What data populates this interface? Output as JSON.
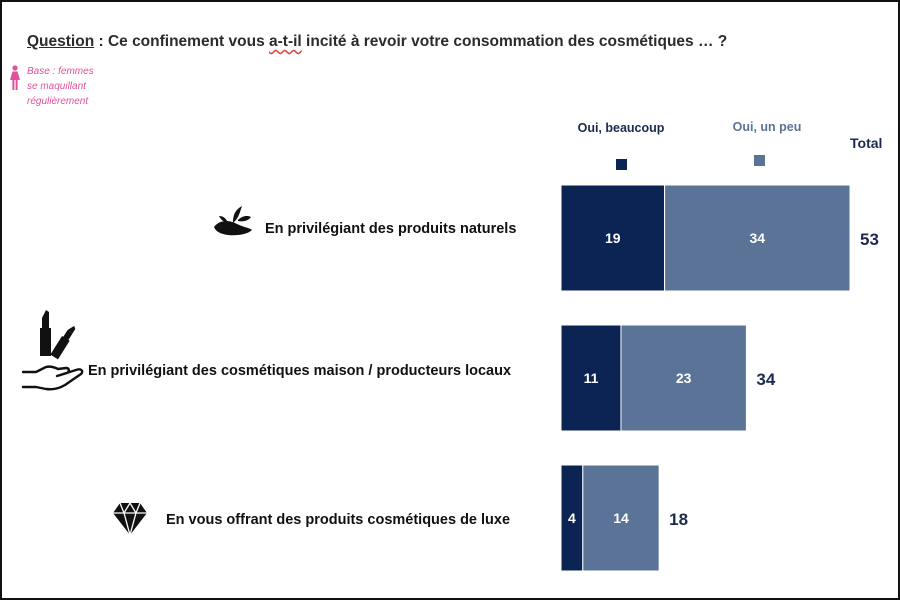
{
  "question": {
    "label": "Question",
    "text_before": " : Ce confinement vous ",
    "text_marked": "a-t-il",
    "text_after": " incité à revoir votre consommation des cosmétiques … ?"
  },
  "base_note": {
    "text": "Base : femmes se maquillant régulièrement",
    "icon": "woman-icon"
  },
  "legend": [
    {
      "label": "Oui, beaucoup",
      "color": "#0b2454"
    },
    {
      "label": "Oui, un peu",
      "color": "#5b7397"
    }
  ],
  "total_header": "Total",
  "chart_data": {
    "type": "bar",
    "orientation": "horizontal",
    "stacked": true,
    "categories": [
      "En privilégiant des produits naturels",
      "En privilégiant des cosmétiques maison / producteurs locaux",
      "En vous offrant des produits cosmétiques de luxe"
    ],
    "series": [
      {
        "name": "Oui, beaucoup",
        "values": [
          19,
          11,
          4
        ],
        "color": "#0b2454"
      },
      {
        "name": "Oui, un peu",
        "values": [
          34,
          23,
          14
        ],
        "color": "#5b7397"
      }
    ],
    "totals": [
      53,
      34,
      18
    ],
    "icons": [
      "hand-plant-icon",
      "lipstick-hand-icon",
      "diamond-icon"
    ],
    "title": "",
    "xlabel": "",
    "ylabel": "",
    "grid": false,
    "legend_position": "top"
  }
}
